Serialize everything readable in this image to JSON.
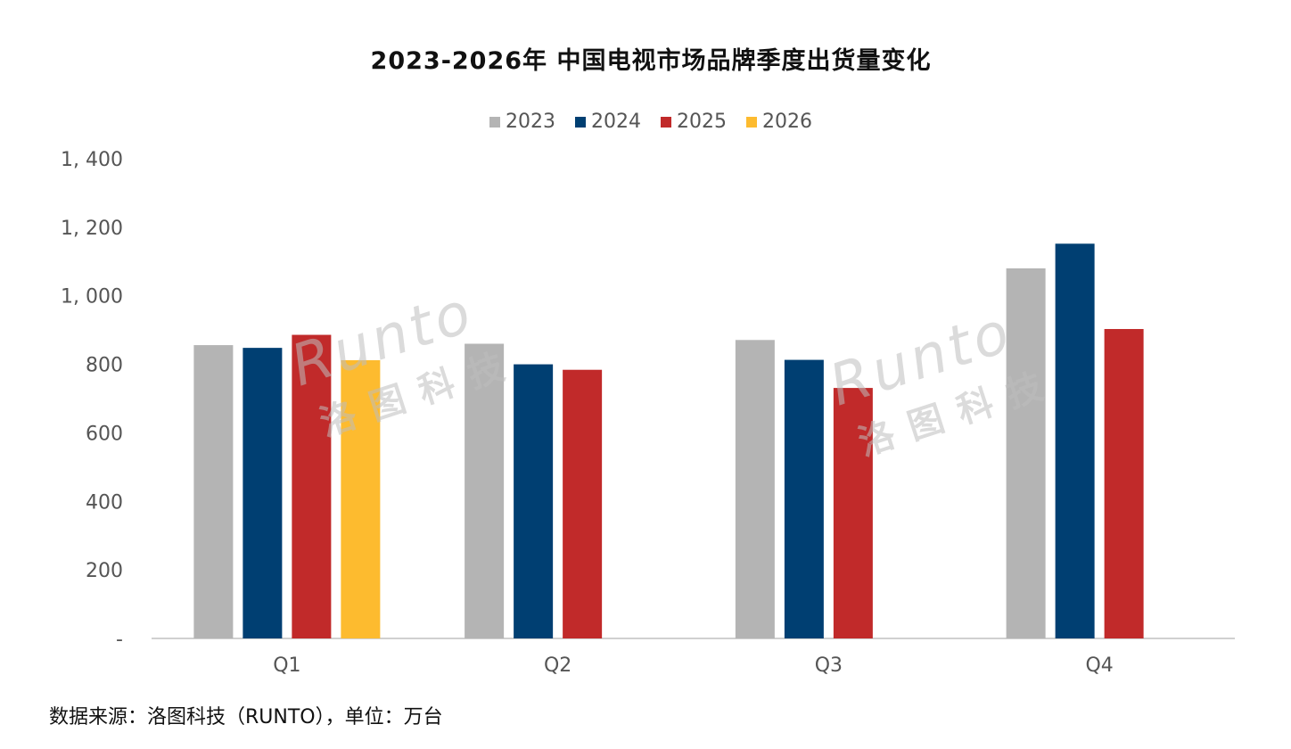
{
  "chart_data": {
    "type": "bar",
    "title": "2023-2026年 中国电视市场品牌季度出货量变化",
    "categories": [
      "Q1",
      "Q2",
      "Q3",
      "Q4"
    ],
    "series": [
      {
        "name": "2023",
        "color": "#b4b4b4",
        "values": [
          856,
          860,
          871,
          1080
        ]
      },
      {
        "name": "2024",
        "color": "#003f72",
        "values": [
          848,
          800,
          813,
          1152
        ]
      },
      {
        "name": "2025",
        "color": "#c12a2a",
        "values": [
          886,
          784,
          731,
          903
        ]
      },
      {
        "name": "2026",
        "color": "#fdbb2f",
        "values": [
          812,
          null,
          null,
          null
        ]
      }
    ],
    "ylim": [
      0,
      1400
    ],
    "yticks": [
      "-",
      "200",
      "400",
      "600",
      "800",
      "1, 000",
      "1, 200",
      "1, 400"
    ],
    "legend_position": "top-center",
    "grid": false
  },
  "source_note": "数据来源：洛图科技（RUNTO），单位：万台",
  "watermark": {
    "brand": "Runto",
    "name": "洛图科技"
  }
}
